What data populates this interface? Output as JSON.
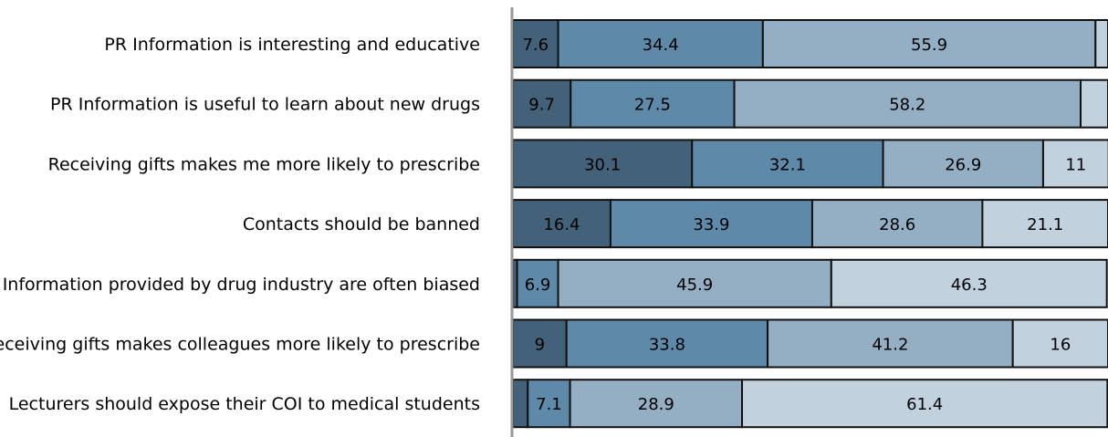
{
  "chart_data": {
    "type": "bar",
    "orientation": "horizontal",
    "stacked": true,
    "categories": [
      "PR Information is interesting and educative",
      "PR Information is useful to learn about new drugs",
      "Receiving gifts makes me more likely to prescribe",
      "Contacts should be banned",
      "Information provided by drug industry are often biased",
      "Receiving gifts makes colleagues more likely to prescribe",
      "Lecturers should expose their COI to medical students"
    ],
    "series": [
      {
        "color": "#436178",
        "values": [
          7.6,
          9.7,
          30.1,
          16.4,
          0.7,
          9,
          2.5
        ]
      },
      {
        "color": "#5e89a9",
        "values": [
          34.4,
          27.5,
          32.1,
          33.9,
          6.9,
          33.8,
          7.1
        ]
      },
      {
        "color": "#94aec4",
        "values": [
          55.9,
          58.2,
          26.9,
          28.6,
          45.9,
          41.2,
          28.9
        ]
      },
      {
        "color": "#c2d1de",
        "values": [
          2.1,
          4.6,
          11,
          21.1,
          46.3,
          16,
          61.4
        ]
      }
    ],
    "data_labels": [
      [
        "7.6",
        "34.4",
        "55.9",
        ""
      ],
      [
        "9.7",
        "27.5",
        "58.2",
        ""
      ],
      [
        "30.1",
        "32.1",
        "26.9",
        "11"
      ],
      [
        "16.4",
        "33.9",
        "28.6",
        "21.1"
      ],
      [
        "",
        "6.9",
        "45.9",
        "46.3"
      ],
      [
        "9",
        "33.8",
        "41.2",
        "16"
      ],
      [
        "",
        "7.1",
        "28.9",
        "61.4"
      ]
    ],
    "xlim": [
      0,
      100
    ],
    "grid": false,
    "legend": "none",
    "axis_color": "#999999"
  }
}
